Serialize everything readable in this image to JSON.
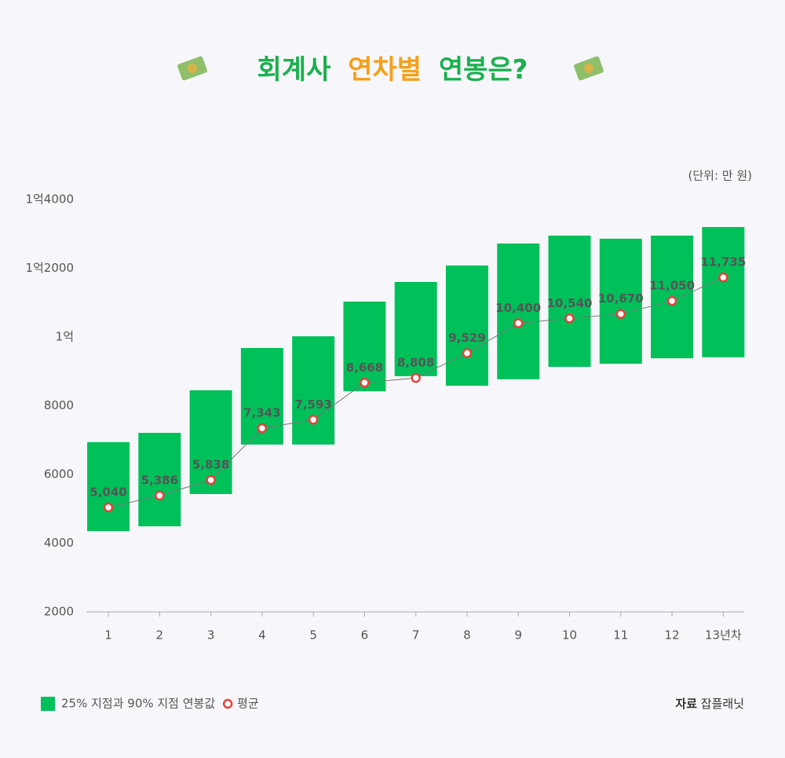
{
  "chart_data": {
    "type": "bar",
    "title_parts": [
      "회계사",
      "연차별",
      "연봉은?"
    ],
    "title_colors": [
      "#1bb04f",
      "#f5a01a",
      "#1bb04f"
    ],
    "unit": "(단위: 만 원)",
    "categories": [
      "1",
      "2",
      "3",
      "4",
      "5",
      "6",
      "7",
      "8",
      "9",
      "10",
      "11",
      "12",
      "13년차"
    ],
    "series": [
      {
        "name": "25% 지점과 90% 지점 연봉값",
        "color": "#00c05a",
        "type": "range",
        "low": [
          4350,
          4490,
          5430,
          6870,
          6870,
          8420,
          8860,
          8580,
          8770,
          9130,
          9220,
          9380,
          9410
        ],
        "high": [
          6940,
          7210,
          8450,
          9680,
          10020,
          11030,
          11600,
          12080,
          12720,
          12950,
          12860,
          12950,
          13200
        ]
      },
      {
        "name": "평균",
        "color": "#e8403a",
        "type": "line",
        "values": [
          5040,
          5386,
          5838,
          7343,
          7593,
          8668,
          8808,
          9529,
          10400,
          10540,
          10670,
          11050,
          11735
        ],
        "value_labels": [
          "5,040",
          "5,386",
          "5,838",
          "7,343",
          "7,593",
          "8,668",
          "8,808",
          "9,529",
          "10,400",
          "10,540",
          "10,670",
          "11,050",
          "11,735"
        ]
      }
    ],
    "ylim": [
      2000,
      14000
    ],
    "yticks": [
      2000,
      4000,
      6000,
      8000,
      {
        "value": 10000,
        "label": "1억"
      },
      {
        "value": 12000,
        "label": "1억2000"
      },
      {
        "value": 14000,
        "label": "1억4000"
      }
    ],
    "source": {
      "label": "자료",
      "text": "잡플래닛"
    }
  }
}
